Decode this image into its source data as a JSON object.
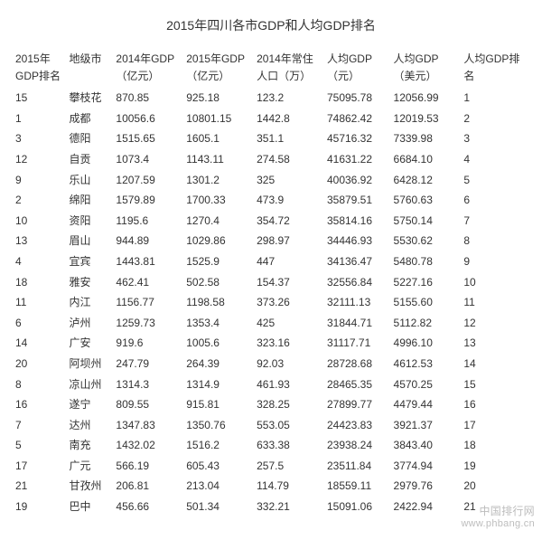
{
  "title": "2015年四川各市GDP和人均GDP排名",
  "columns": [
    "2015年GDP排名",
    "地级市",
    "2014年GDP（亿元）",
    "2015年GDP（亿元）",
    "2014年常住人口（万）",
    "人均GDP（元）",
    "人均GDP（美元）",
    "人均GDP排名"
  ],
  "rows": [
    [
      "15",
      "攀枝花",
      "870.85",
      "925.18",
      "123.2",
      "75095.78",
      "12056.99",
      "1"
    ],
    [
      "1",
      "成都",
      "10056.6",
      "10801.15",
      "1442.8",
      "74862.42",
      "12019.53",
      "2"
    ],
    [
      "3",
      "德阳",
      "1515.65",
      "1605.1",
      "351.1",
      "45716.32",
      "7339.98",
      "3"
    ],
    [
      "12",
      "自贡",
      "1073.4",
      "1143.11",
      "274.58",
      "41631.22",
      "6684.10",
      "4"
    ],
    [
      "9",
      "乐山",
      "1207.59",
      "1301.2",
      "325",
      "40036.92",
      "6428.12",
      "5"
    ],
    [
      "2",
      "绵阳",
      "1579.89",
      "1700.33",
      "473.9",
      "35879.51",
      "5760.63",
      "6"
    ],
    [
      "10",
      "资阳",
      "1195.6",
      "1270.4",
      "354.72",
      "35814.16",
      "5750.14",
      "7"
    ],
    [
      "13",
      "眉山",
      "944.89",
      "1029.86",
      "298.97",
      "34446.93",
      "5530.62",
      "8"
    ],
    [
      "4",
      "宜宾",
      "1443.81",
      "1525.9",
      "447",
      "34136.47",
      "5480.78",
      "9"
    ],
    [
      "18",
      "雅安",
      "462.41",
      "502.58",
      "154.37",
      "32556.84",
      "5227.16",
      "10"
    ],
    [
      "11",
      "内江",
      "1156.77",
      "1198.58",
      "373.26",
      "32111.13",
      "5155.60",
      "11"
    ],
    [
      "6",
      "泸州",
      "1259.73",
      "1353.4",
      "425",
      "31844.71",
      "5112.82",
      "12"
    ],
    [
      "14",
      "广安",
      "919.6",
      "1005.6",
      "323.16",
      "31117.71",
      "4996.10",
      "13"
    ],
    [
      "20",
      "阿坝州",
      "247.79",
      "264.39",
      "92.03",
      "28728.68",
      "4612.53",
      "14"
    ],
    [
      "8",
      "凉山州",
      "1314.3",
      "1314.9",
      "461.93",
      "28465.35",
      "4570.25",
      "15"
    ],
    [
      "16",
      "遂宁",
      "809.55",
      "915.81",
      "328.25",
      "27899.77",
      "4479.44",
      "16"
    ],
    [
      "7",
      "达州",
      "1347.83",
      "1350.76",
      "553.05",
      "24423.83",
      "3921.37",
      "17"
    ],
    [
      "5",
      "南充",
      "1432.02",
      "1516.2",
      "633.38",
      "23938.24",
      "3843.40",
      "18"
    ],
    [
      "17",
      "广元",
      "566.19",
      "605.43",
      "257.5",
      "23511.84",
      "3774.94",
      "19"
    ],
    [
      "21",
      "甘孜州",
      "206.81",
      "213.04",
      "114.79",
      "18559.11",
      "2979.76",
      "20"
    ],
    [
      "19",
      "巴中",
      "456.66",
      "501.34",
      "332.21",
      "15091.06",
      "2422.94",
      "21"
    ]
  ],
  "watermark_cn": "中国排行网",
  "watermark_url": "www.phbang.cn"
}
